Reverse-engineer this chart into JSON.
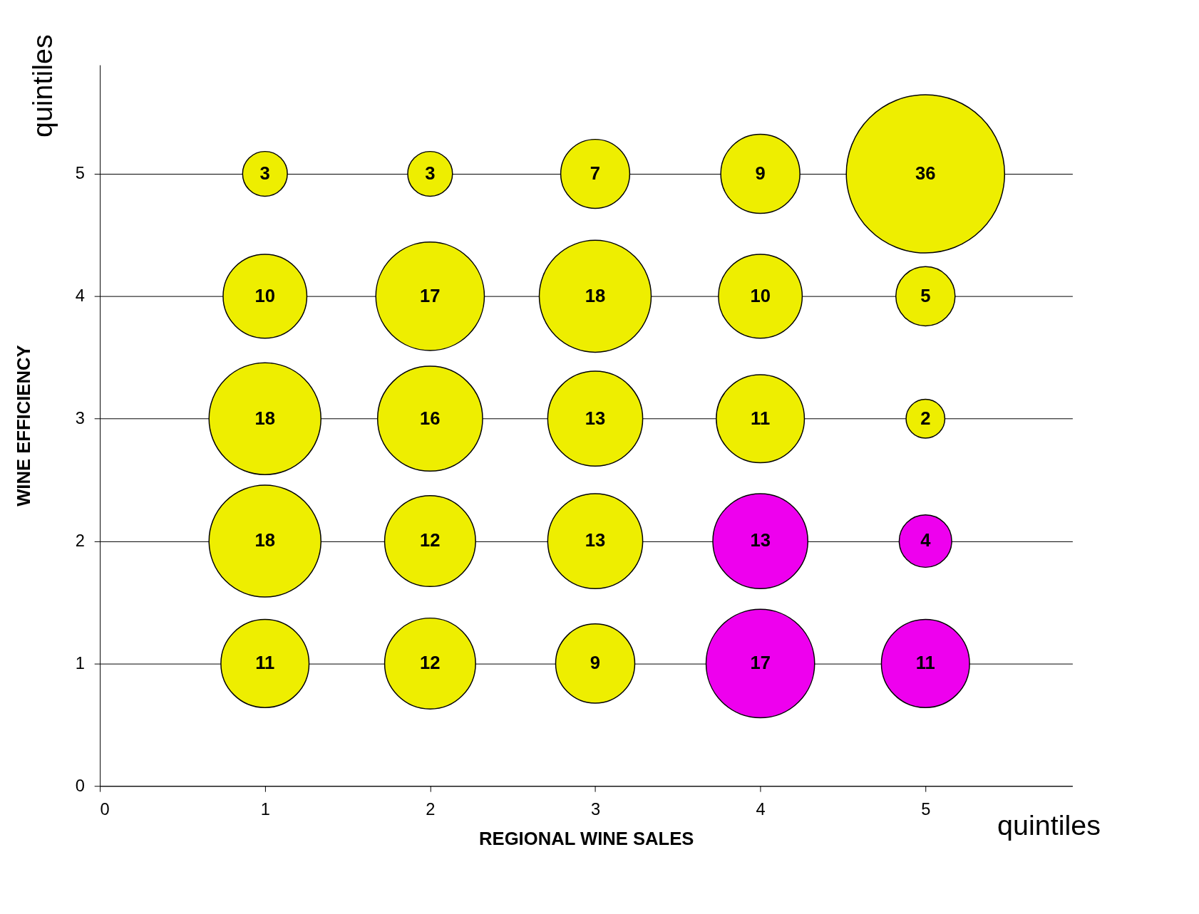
{
  "chart_data": {
    "type": "bubble",
    "xlabel": "REGIONAL WINE SALES",
    "ylabel": "WINE EFFICIENCY",
    "annotations": [
      "quintiles",
      "quintiles",
      {
        "text": "3",
        "x": 1,
        "y": 5
      },
      {
        "text": "3",
        "x": 2,
        "y": 5
      },
      {
        "text": "7",
        "x": 3,
        "y": 5
      },
      {
        "text": "9",
        "x": 4,
        "y": 5
      },
      {
        "text": "36",
        "x": 5,
        "y": 5
      },
      {
        "text": "10",
        "x": 1,
        "y": 4
      },
      {
        "text": "17",
        "x": 2,
        "y": 4
      },
      {
        "text": "18",
        "x": 3,
        "y": 4
      },
      {
        "text": "10",
        "x": 4,
        "y": 4
      },
      {
        "text": "5",
        "x": 5,
        "y": 4
      },
      {
        "text": "18",
        "x": 1,
        "y": 3
      },
      {
        "text": "16",
        "x": 2,
        "y": 3
      },
      {
        "text": "13",
        "x": 3,
        "y": 3
      },
      {
        "text": "11",
        "x": 4,
        "y": 3
      },
      {
        "text": "2",
        "x": 5,
        "y": 3
      },
      {
        "text": "18",
        "x": 1,
        "y": 2
      },
      {
        "text": "12",
        "x": 2,
        "y": 2
      },
      {
        "text": "13",
        "x": 3,
        "y": 2
      },
      {
        "text": "13",
        "x": 4,
        "y": 2
      },
      {
        "text": "4",
        "x": 5,
        "y": 2
      },
      {
        "text": "11",
        "x": 1,
        "y": 1
      },
      {
        "text": "12",
        "x": 2,
        "y": 1
      },
      {
        "text": "9",
        "x": 3,
        "y": 1
      },
      {
        "text": "17",
        "x": 4,
        "y": 1
      },
      {
        "text": "11",
        "x": 5,
        "y": 1
      }
    ],
    "xlim": [
      0,
      5.89
    ],
    "ylim": [
      0,
      5.89
    ],
    "xticks": [
      0,
      1,
      2,
      3,
      4,
      5
    ],
    "yticks": [
      0,
      1,
      2,
      3,
      4,
      5
    ],
    "grid": "y",
    "legend": false,
    "series": [
      {
        "color": "#eeee00",
        "x": [
          1,
          2,
          3,
          4,
          5,
          1,
          2,
          3,
          4,
          5,
          1,
          2,
          3,
          4,
          5,
          1,
          2,
          3,
          1,
          2,
          3
        ],
        "values": [
          5,
          5,
          5,
          5,
          5,
          4,
          4,
          4,
          4,
          4,
          3,
          3,
          3,
          3,
          3,
          2,
          2,
          2,
          1,
          1,
          1
        ],
        "sizes": [
          0.08,
          0.08,
          0.19,
          0.25,
          1,
          0.28,
          0.47,
          0.5,
          0.28,
          0.14,
          0.5,
          0.44,
          0.36,
          0.31,
          0.06,
          0.5,
          0.33,
          0.36,
          0.31,
          0.33,
          0.25
        ]
      },
      {
        "color": "#ee00ee",
        "x": [
          4,
          5,
          4,
          5
        ],
        "values": [
          2,
          2,
          1,
          1
        ],
        "sizes": [
          0.36,
          0.11,
          0.47,
          0.31
        ]
      }
    ]
  }
}
